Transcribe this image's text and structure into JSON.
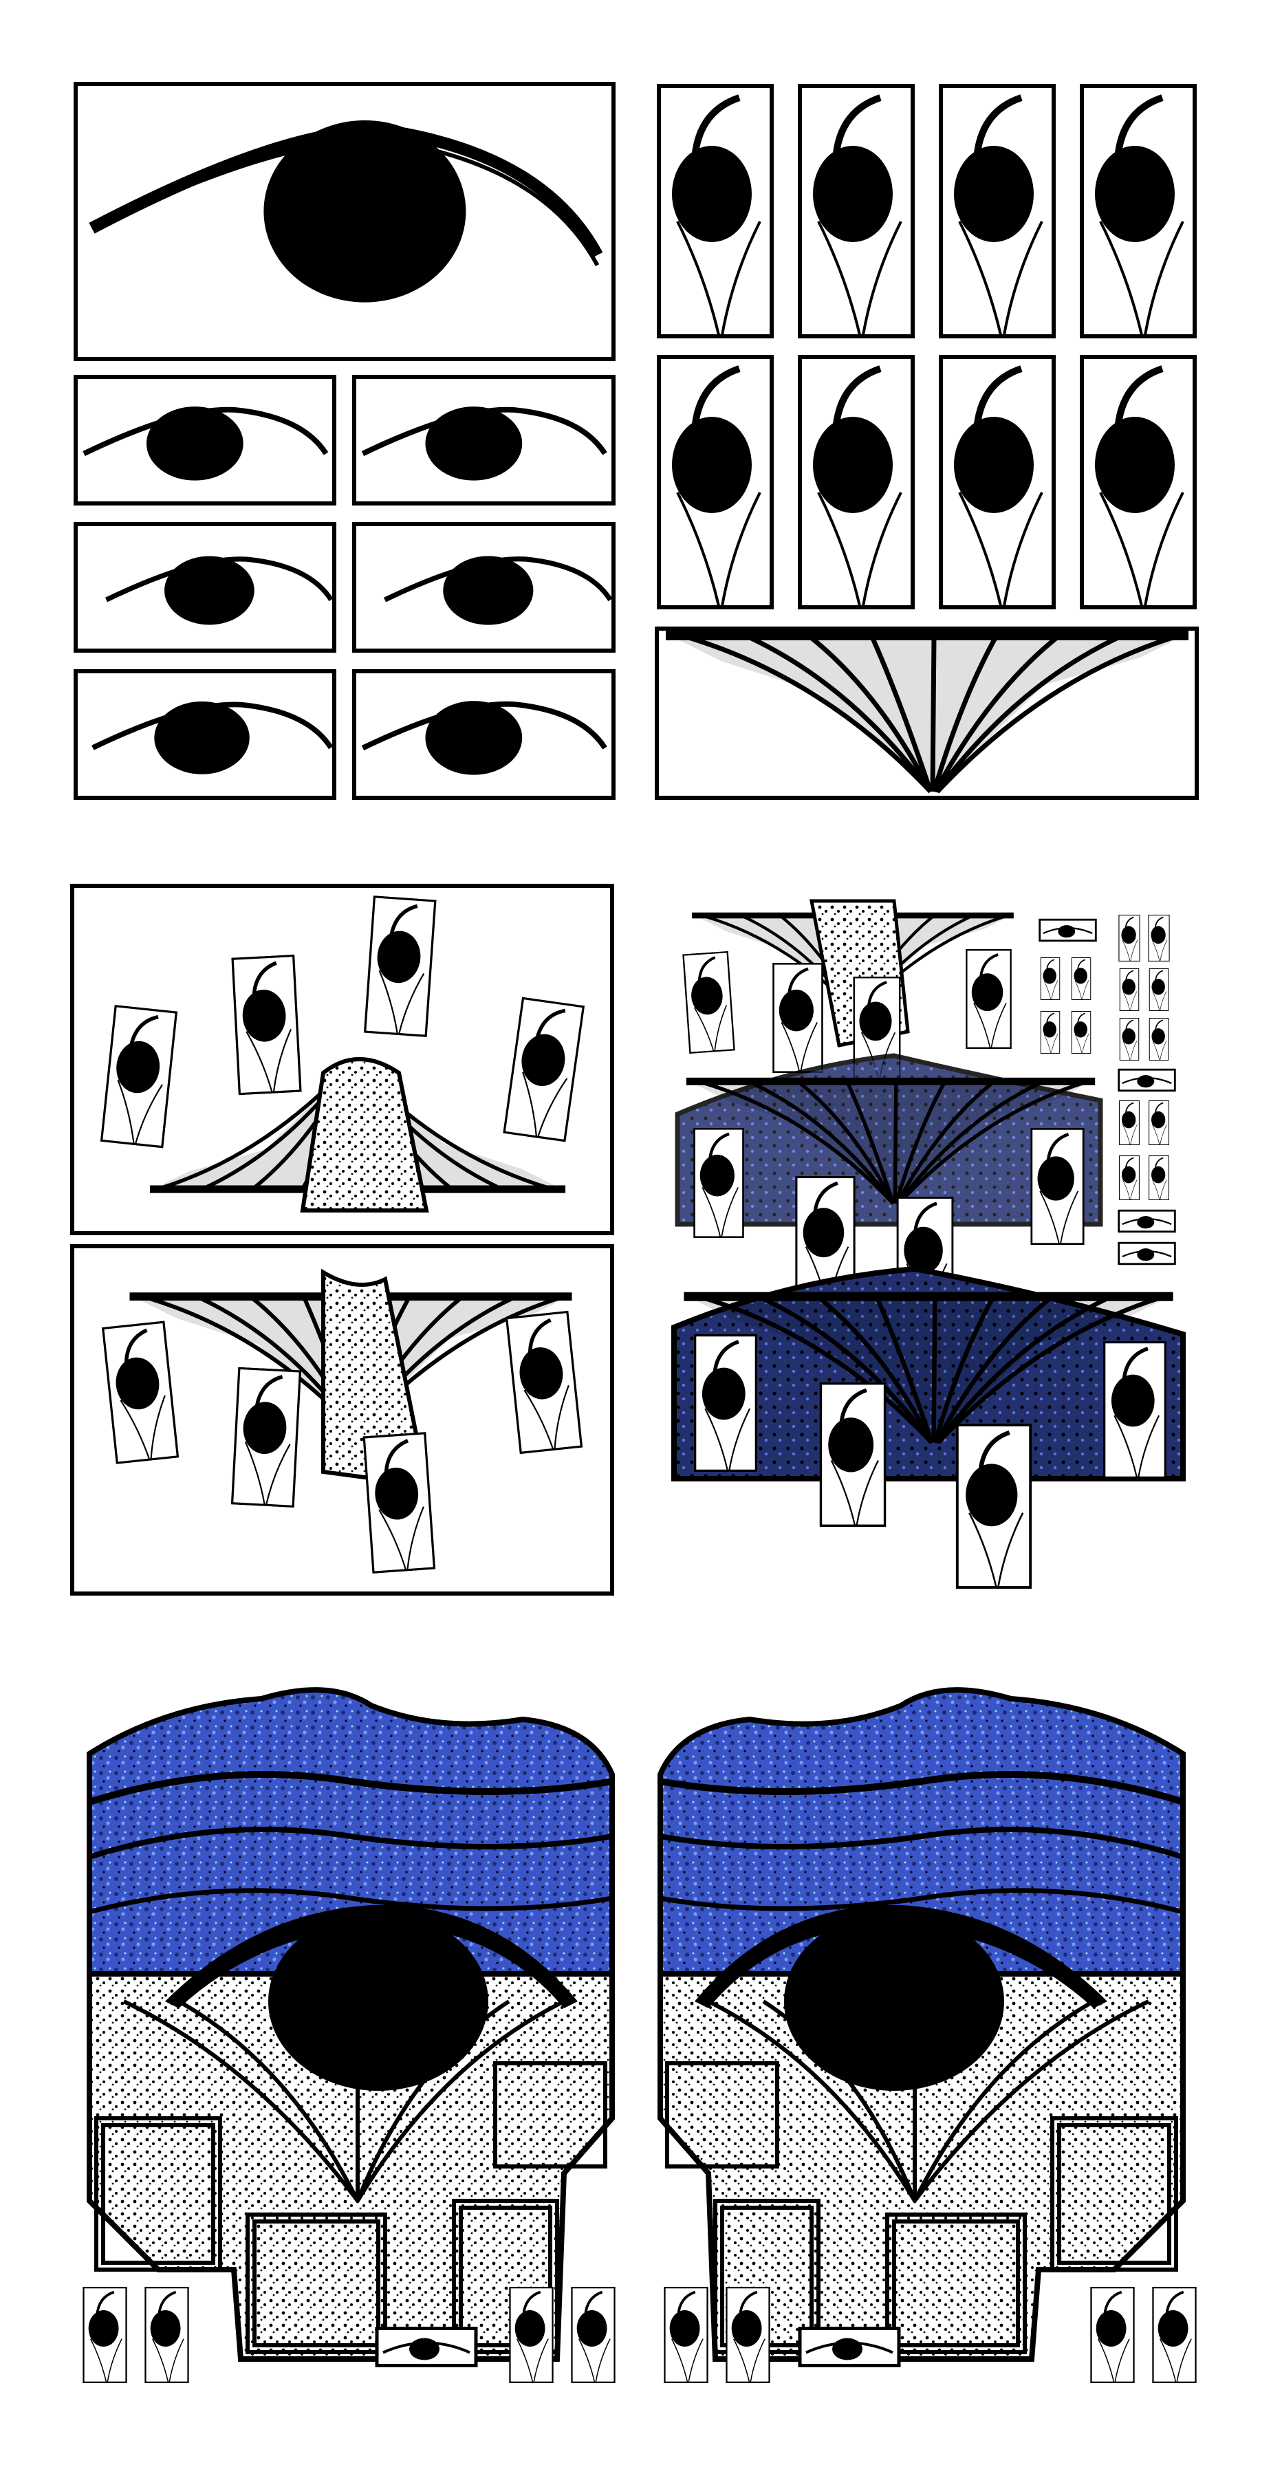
{
  "palette": {
    "ink": "#000000",
    "paper": "#ffffff",
    "blue_deep": "#1e2a6e",
    "blue_mid": "#3a55c8",
    "blue_light": "#7f9bf0",
    "cyan_spark": "#8fe3f0"
  },
  "sections": [
    {
      "name": "top-eye-study-section",
      "motifs": [
        "wide-eye",
        "small-eyes-grid",
        "comma-eye-tiles",
        "fan-strip"
      ]
    },
    {
      "name": "middle-fan-compositions-section",
      "motifs": [
        "fan-with-tiles",
        "blue-stacked-fans",
        "mini-eye-tiles"
      ]
    },
    {
      "name": "bottom-mirrored-blue-eyes-section",
      "motifs": [
        "mirrored-blue-eye",
        "tile-row"
      ]
    }
  ]
}
